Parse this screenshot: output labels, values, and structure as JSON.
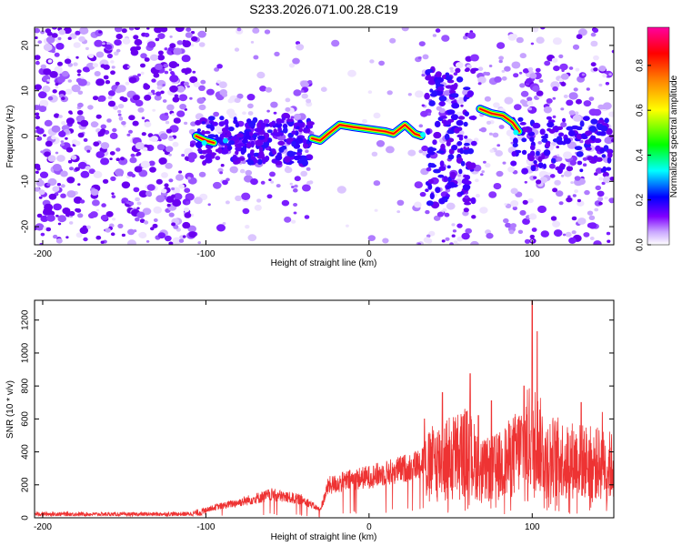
{
  "title": "S233.2026.071.00.28.C19",
  "chart_data": [
    {
      "type": "heatmap",
      "xlabel": "Height of straight line (km)",
      "ylabel": "Frequency (Hz)",
      "xlim": [
        -205,
        150
      ],
      "ylim": [
        -24,
        24
      ],
      "xticks": [
        -200,
        -100,
        0,
        100
      ],
      "yticks": [
        -20,
        -10,
        0,
        10,
        20
      ],
      "grid": false,
      "colorbar": {
        "label": "Normalized spectral amplitude",
        "range": [
          0,
          0.97
        ],
        "ticks": [
          "0.0",
          "0.2",
          "0.4",
          "0.6",
          "0.8"
        ],
        "colors": [
          "#ffffff",
          "#8000ff",
          "#0000ff",
          "#00ffff",
          "#00ff00",
          "#ffff00",
          "#ff8000",
          "#ff0000",
          "#ff00a0"
        ]
      },
      "ridge": [
        {
          "x": -106,
          "y": 0
        },
        {
          "x": -100,
          "y": -1
        },
        {
          "x": -95,
          "y": -1.5
        },
        {
          "x": -35,
          "y": -0.5
        },
        {
          "x": -30,
          "y": -1
        },
        {
          "x": -25,
          "y": 0.5
        },
        {
          "x": -18,
          "y": 2.5
        },
        {
          "x": -10,
          "y": 2
        },
        {
          "x": 0,
          "y": 1.5
        },
        {
          "x": 10,
          "y": 1
        },
        {
          "x": 15,
          "y": 0.5
        },
        {
          "x": 22,
          "y": 2.5
        },
        {
          "x": 28,
          "y": 0.5
        },
        {
          "x": 32,
          "y": 0
        },
        {
          "x": 35,
          "y": 0.5
        },
        {
          "x": 68,
          "y": 6
        },
        {
          "x": 75,
          "y": 5
        },
        {
          "x": 82,
          "y": 4.5
        },
        {
          "x": 88,
          "y": 3
        },
        {
          "x": 92,
          "y": 1
        }
      ]
    },
    {
      "type": "line",
      "xlabel": "Height of straight line (km)",
      "ylabel": "SNR (10 * v/v)",
      "xlim": [
        -205,
        150
      ],
      "ylim": [
        0,
        1320
      ],
      "xticks": [
        -200,
        -100,
        0,
        100
      ],
      "yticks": [
        0,
        200,
        400,
        600,
        800,
        1000,
        1200
      ],
      "grid": false,
      "color": "#ee3333",
      "envelope": [
        {
          "x": -205,
          "y": 30
        },
        {
          "x": -150,
          "y": 25
        },
        {
          "x": -110,
          "y": 30
        },
        {
          "x": -95,
          "y": 80
        },
        {
          "x": -80,
          "y": 120
        },
        {
          "x": -60,
          "y": 180
        },
        {
          "x": -40,
          "y": 140
        },
        {
          "x": -30,
          "y": 60
        },
        {
          "x": -25,
          "y": 250
        },
        {
          "x": -10,
          "y": 300
        },
        {
          "x": 0,
          "y": 320
        },
        {
          "x": 10,
          "y": 350
        },
        {
          "x": 20,
          "y": 380
        },
        {
          "x": 30,
          "y": 420
        },
        {
          "x": 40,
          "y": 550
        },
        {
          "x": 60,
          "y": 650
        },
        {
          "x": 70,
          "y": 450
        },
        {
          "x": 80,
          "y": 500
        },
        {
          "x": 90,
          "y": 620
        },
        {
          "x": 100,
          "y": 800
        },
        {
          "x": 110,
          "y": 600
        },
        {
          "x": 130,
          "y": 550
        },
        {
          "x": 150,
          "y": 500
        }
      ],
      "peaks": [
        {
          "x": 34,
          "y": 600
        },
        {
          "x": 45,
          "y": 760
        },
        {
          "x": 62,
          "y": 875
        },
        {
          "x": 67,
          "y": 620
        },
        {
          "x": 75,
          "y": 710
        },
        {
          "x": 95,
          "y": 800
        },
        {
          "x": 100,
          "y": 1320
        },
        {
          "x": 103,
          "y": 1130
        },
        {
          "x": 130,
          "y": 700
        },
        {
          "x": 143,
          "y": 640
        }
      ]
    }
  ]
}
